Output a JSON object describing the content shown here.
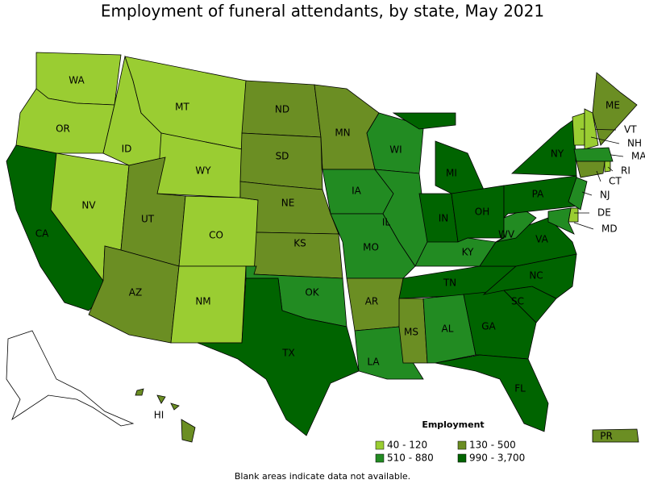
{
  "title": "Employment of funeral attendants, by state, May 2021",
  "states": [
    {
      "label": "WA",
      "color": "#9acd32"
    },
    {
      "label": "OR",
      "color": "#9acd32"
    },
    {
      "label": "CA",
      "color": "#006400"
    },
    {
      "label": "NV",
      "color": "#9acd32"
    },
    {
      "label": "ID",
      "color": "#9acd32"
    },
    {
      "label": "MT",
      "color": "#9acd32"
    },
    {
      "label": "WY",
      "color": "#9acd32"
    },
    {
      "label": "UT",
      "color": "#6b8e23"
    },
    {
      "label": "CO",
      "color": "#9acd32"
    },
    {
      "label": "AZ",
      "color": "#6b8e23"
    },
    {
      "label": "NM",
      "color": "#9acd32"
    },
    {
      "label": "ND",
      "color": "#6b8e23"
    },
    {
      "label": "SD",
      "color": "#6b8e23"
    },
    {
      "label": "NE",
      "color": "#6b8e23"
    },
    {
      "label": "KS",
      "color": "#6b8e23"
    },
    {
      "label": "OK",
      "color": "#228b22"
    },
    {
      "label": "TX",
      "color": "#006400"
    },
    {
      "label": "MN",
      "color": "#6b8e23"
    },
    {
      "label": "IA",
      "color": "#228b22"
    },
    {
      "label": "MO",
      "color": "#228b22"
    },
    {
      "label": "AR",
      "color": "#6b8e23"
    },
    {
      "label": "LA",
      "color": "#228b22"
    },
    {
      "label": "WI",
      "color": "#228b22"
    },
    {
      "label": "IL",
      "color": "#228b22"
    },
    {
      "label": "MI",
      "color": "#006400"
    },
    {
      "label": "IN",
      "color": "#006400"
    },
    {
      "label": "OH",
      "color": "#006400"
    },
    {
      "label": "KY",
      "color": "#228b22"
    },
    {
      "label": "TN",
      "color": "#006400"
    },
    {
      "label": "MS",
      "color": "#6b8e23"
    },
    {
      "label": "AL",
      "color": "#228b22"
    },
    {
      "label": "GA",
      "color": "#006400"
    },
    {
      "label": "FL",
      "color": "#006400"
    },
    {
      "label": "SC",
      "color": "#006400"
    },
    {
      "label": "NC",
      "color": "#006400"
    },
    {
      "label": "VA",
      "color": "#006400"
    },
    {
      "label": "WV",
      "color": "#228b22"
    },
    {
      "label": "PA",
      "color": "#006400"
    },
    {
      "label": "NY",
      "color": "#006400"
    },
    {
      "label": "ME",
      "color": "#6b8e23"
    },
    {
      "label": "VT",
      "color": "#9acd32"
    },
    {
      "label": "NH",
      "color": "#9acd32"
    },
    {
      "label": "MA",
      "color": "#228b22"
    },
    {
      "label": "RI",
      "color": "#9acd32"
    },
    {
      "label": "CT",
      "color": "#6b8e23"
    },
    {
      "label": "NJ",
      "color": "#228b22"
    },
    {
      "label": "DE",
      "color": "#9acd32"
    },
    {
      "label": "MD",
      "color": "#228b22"
    },
    {
      "label": "HI",
      "color": "#6b8e23"
    },
    {
      "label": "PR",
      "color": "#6b8e23"
    }
  ],
  "legend": {
    "title": "Employment",
    "items": [
      {
        "label": "40 - 120",
        "color": "#9acd32"
      },
      {
        "label": "130 - 500",
        "color": "#6b8e23"
      },
      {
        "label": "510 - 880",
        "color": "#228b22"
      },
      {
        "label": "990 - 3,700",
        "color": "#006400"
      }
    ]
  },
  "note": "Blank areas indicate data not available."
}
